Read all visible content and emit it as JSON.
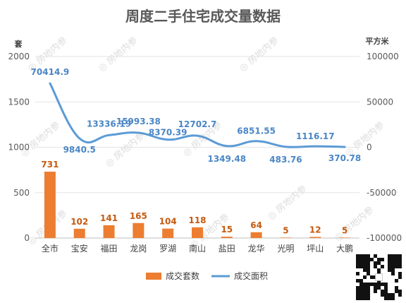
{
  "chart_data": {
    "type": "bar+line",
    "title": "周度二手住宅成交量数据",
    "y_left_unit": "套",
    "y_right_unit": "平方米",
    "y_left_ticks": [
      "0",
      "500",
      "1000",
      "1500",
      "2000"
    ],
    "y_right_ticks": [
      "-100000",
      "-50000",
      "0",
      "50000",
      "100000"
    ],
    "y_left_range": [
      0,
      2000
    ],
    "y_right_range": [
      -100000,
      100000
    ],
    "categories": [
      "全市",
      "宝安",
      "福田",
      "龙岗",
      "罗湖",
      "南山",
      "盐田",
      "龙华",
      "光明",
      "坪山",
      "大鹏"
    ],
    "series": [
      {
        "name": "成交套数",
        "type": "bar",
        "axis": "left",
        "color": "#ed7d31",
        "values": [
          731,
          102,
          141,
          165,
          104,
          118,
          15,
          64,
          5,
          12,
          5
        ],
        "labels": [
          "731",
          "102",
          "141",
          "165",
          "104",
          "118",
          "15",
          "64",
          "5",
          "12",
          "5"
        ]
      },
      {
        "name": "成交面积",
        "type": "line",
        "axis": "right",
        "color": "#5b9bd5",
        "values": [
          70414.9,
          9840.5,
          13336.19,
          15993.38,
          8370.39,
          12702.7,
          1349.48,
          6851.55,
          483.76,
          1116.17,
          370.78
        ],
        "labels": [
          "70414.9",
          "9840.5",
          "13336.19",
          "15993.38",
          "8370.39",
          "12702.7",
          "1349.48",
          "6851.55",
          "483.76",
          "1116.17",
          "370.78"
        ]
      }
    ],
    "legend": [
      "成交套数",
      "成交面积"
    ],
    "legend_position": "bottom",
    "grid": true
  },
  "watermark": "房地内参",
  "qr_code": "qr-code"
}
